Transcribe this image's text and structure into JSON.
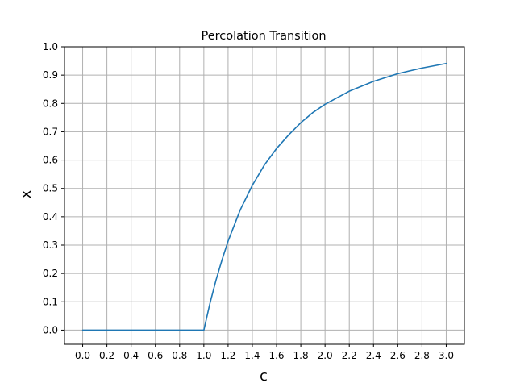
{
  "chart_data": {
    "type": "line",
    "title": "Percolation Transition",
    "xlabel": "c",
    "ylabel": "x",
    "xlim": [
      -0.15,
      3.15
    ],
    "ylim": [
      -0.05,
      1.0
    ],
    "xticks": [
      0.0,
      0.2,
      0.4,
      0.6,
      0.8,
      1.0,
      1.2,
      1.4,
      1.6,
      1.8,
      2.0,
      2.2,
      2.4,
      2.6,
      2.8,
      3.0
    ],
    "xtick_labels": [
      "0.0",
      "0.2",
      "0.4",
      "0.6",
      "0.8",
      "1.0",
      "1.2",
      "1.4",
      "1.6",
      "1.8",
      "2.0",
      "2.2",
      "2.4",
      "2.6",
      "2.8",
      "3.0"
    ],
    "yticks": [
      0.0,
      0.1,
      0.2,
      0.3,
      0.4,
      0.5,
      0.6,
      0.7,
      0.8,
      0.9,
      1.0
    ],
    "ytick_labels": [
      "0.0",
      "0.1",
      "0.2",
      "0.3",
      "0.4",
      "0.5",
      "0.6",
      "0.7",
      "0.8",
      "0.9",
      "1.0"
    ],
    "grid": true,
    "legend": "none",
    "colors": {
      "line": "#1f77b4",
      "grid": "#b0b0b0",
      "axes": "#000000"
    },
    "series": [
      {
        "name": "",
        "x": [
          0.0,
          0.2,
          0.4,
          0.6,
          0.8,
          1.0,
          1.05,
          1.1,
          1.15,
          1.2,
          1.3,
          1.4,
          1.5,
          1.6,
          1.7,
          1.8,
          1.9,
          2.0,
          2.2,
          2.4,
          2.6,
          2.8,
          3.0
        ],
        "y": [
          0.0,
          0.0,
          0.0,
          0.0,
          0.0,
          0.0,
          0.094,
          0.176,
          0.248,
          0.314,
          0.424,
          0.511,
          0.583,
          0.641,
          0.689,
          0.732,
          0.768,
          0.797,
          0.843,
          0.878,
          0.905,
          0.925,
          0.941
        ]
      }
    ]
  }
}
